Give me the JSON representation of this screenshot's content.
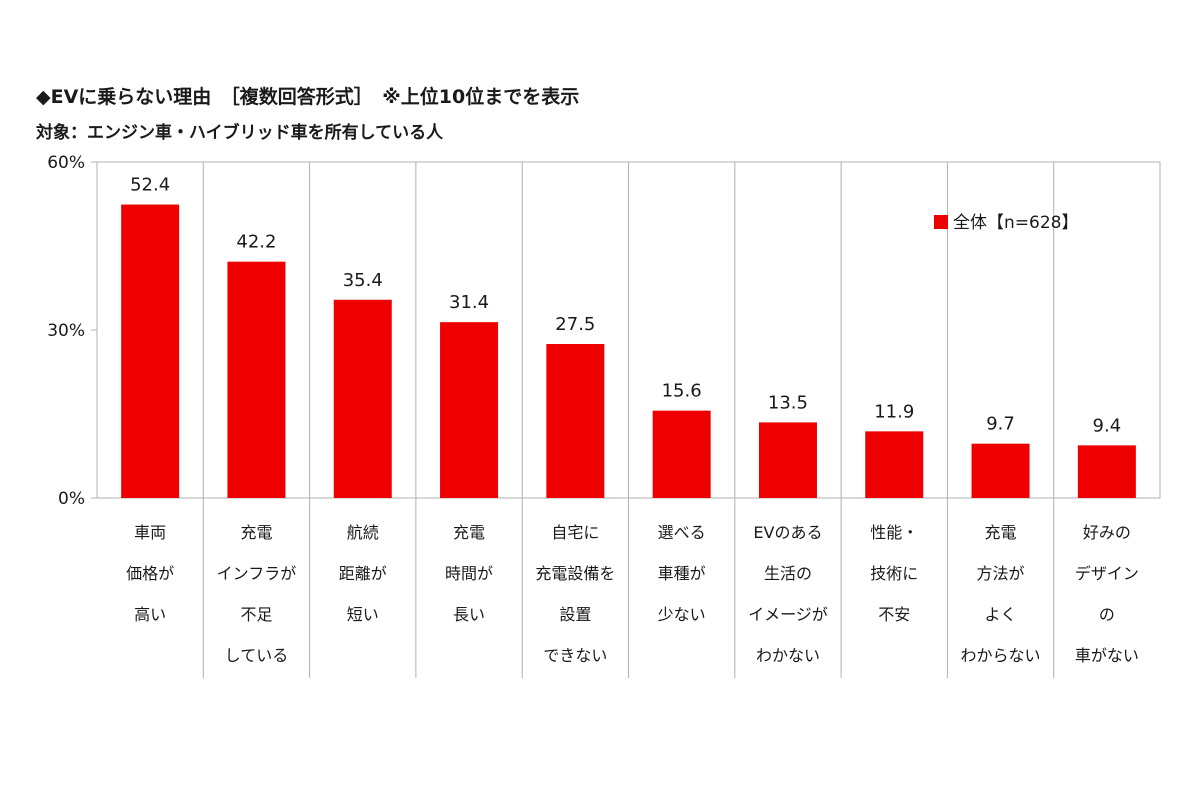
{
  "title": "◆EVに乗らない理由　［複数回答形式］　※上位10位までを表示",
  "subtitle": "対象：エンジン車・ハイブリッド車を所有している人",
  "colors": {
    "bar": "#ee0000",
    "grid": "#b0b0b0",
    "text": "#1a1a1a"
  },
  "chart_data": {
    "type": "bar",
    "ylim": [
      0,
      60
    ],
    "yticks": [
      "0%",
      "30%",
      "60%"
    ],
    "ytick_values": [
      0,
      30,
      60
    ],
    "grid": false,
    "legend_position": "top-right",
    "series": [
      {
        "name": "全体【n=628】",
        "values": [
          52.4,
          42.2,
          35.4,
          31.4,
          27.5,
          15.6,
          13.5,
          11.9,
          9.7,
          9.4
        ]
      }
    ],
    "data_labels": [
      "52.4",
      "42.2",
      "35.4",
      "31.4",
      "27.5",
      "15.6",
      "13.5",
      "11.9",
      "9.7",
      "9.4"
    ],
    "categories": [
      [
        "車両",
        "価格が",
        "高い"
      ],
      [
        "充電",
        "インフラが",
        "不足",
        "している"
      ],
      [
        "航続",
        "距離が",
        "短い"
      ],
      [
        "充電",
        "時間が",
        "長い"
      ],
      [
        "自宅に",
        "充電設備を",
        "設置",
        "できない"
      ],
      [
        "選べる",
        "車種が",
        "少ない"
      ],
      [
        "EVのある",
        "生活の",
        "イメージが",
        "わかない"
      ],
      [
        "性能・",
        "技術に",
        "不安"
      ],
      [
        "充電",
        "方法が",
        "よく",
        "わからない"
      ],
      [
        "好みの",
        "デザイン",
        "の",
        "車がない"
      ]
    ]
  }
}
